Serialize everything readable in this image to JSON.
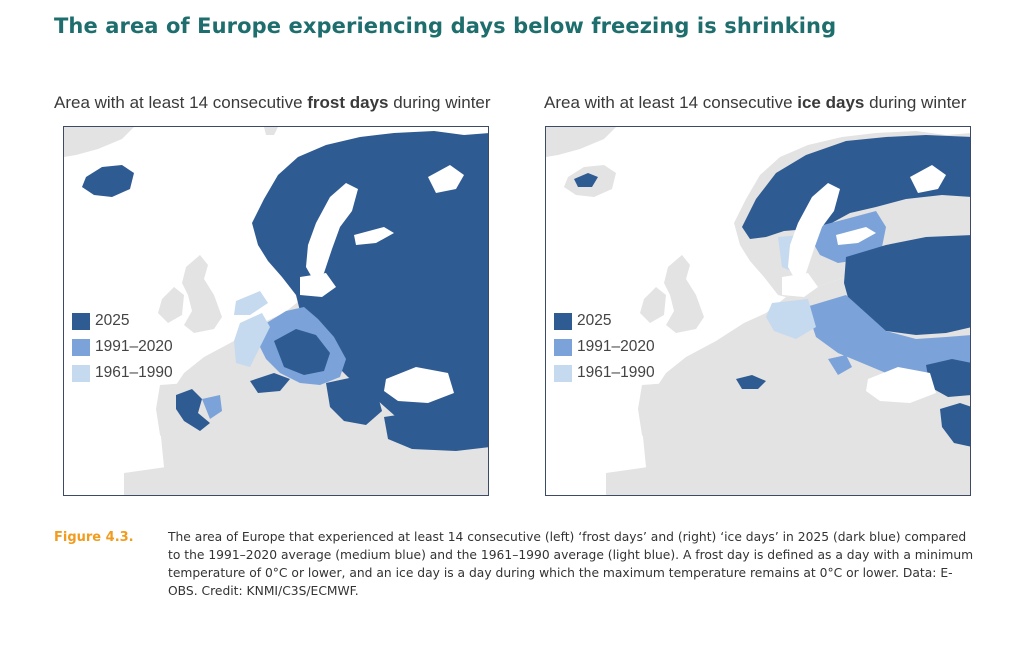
{
  "title": "The area of Europe experiencing days below freezing is shrinking",
  "colors": {
    "y2025": "#2f5b93",
    "avg_1991_2020": "#7ba3d9",
    "avg_1961_1990": "#c5d9ef",
    "land": "#e3e3e3",
    "sea": "#ffffff",
    "title": "#1e6e6e",
    "figure_label": "#f29c1f",
    "frame": "#3c4a66"
  },
  "maps": [
    {
      "title_prefix": "Area with at least 14 consecutive ",
      "title_bold": "frost days",
      "title_suffix": " during winter",
      "legend": [
        {
          "label": "2025",
          "color": "#2f5b93"
        },
        {
          "label": "1991–2020",
          "color": "#7ba3d9"
        },
        {
          "label": "1961–1990",
          "color": "#c5d9ef"
        }
      ]
    },
    {
      "title_prefix": "Area with at least 14 consecutive ",
      "title_bold": "ice days",
      "title_suffix": " during winter",
      "legend": [
        {
          "label": "2025",
          "color": "#2f5b93"
        },
        {
          "label": "1991–2020",
          "color": "#7ba3d9"
        },
        {
          "label": "1961–1990",
          "color": "#c5d9ef"
        }
      ]
    }
  ],
  "caption": {
    "label": "Figure 4.3.",
    "text": "The area of Europe that experienced at least 14 consecutive (left) ‘frost days’ and (right) ‘ice days’ in 2025 (dark blue) compared to the 1991–2020 average (medium blue) and the 1961–1990 average (light blue). A frost day is defined as a day with a minimum temperature of 0°C or lower, and an ice day is a day during which the maximum temperature remains at 0°C or lower. Data: E-OBS. Credit: KNMI/C3S/ECMWF."
  }
}
